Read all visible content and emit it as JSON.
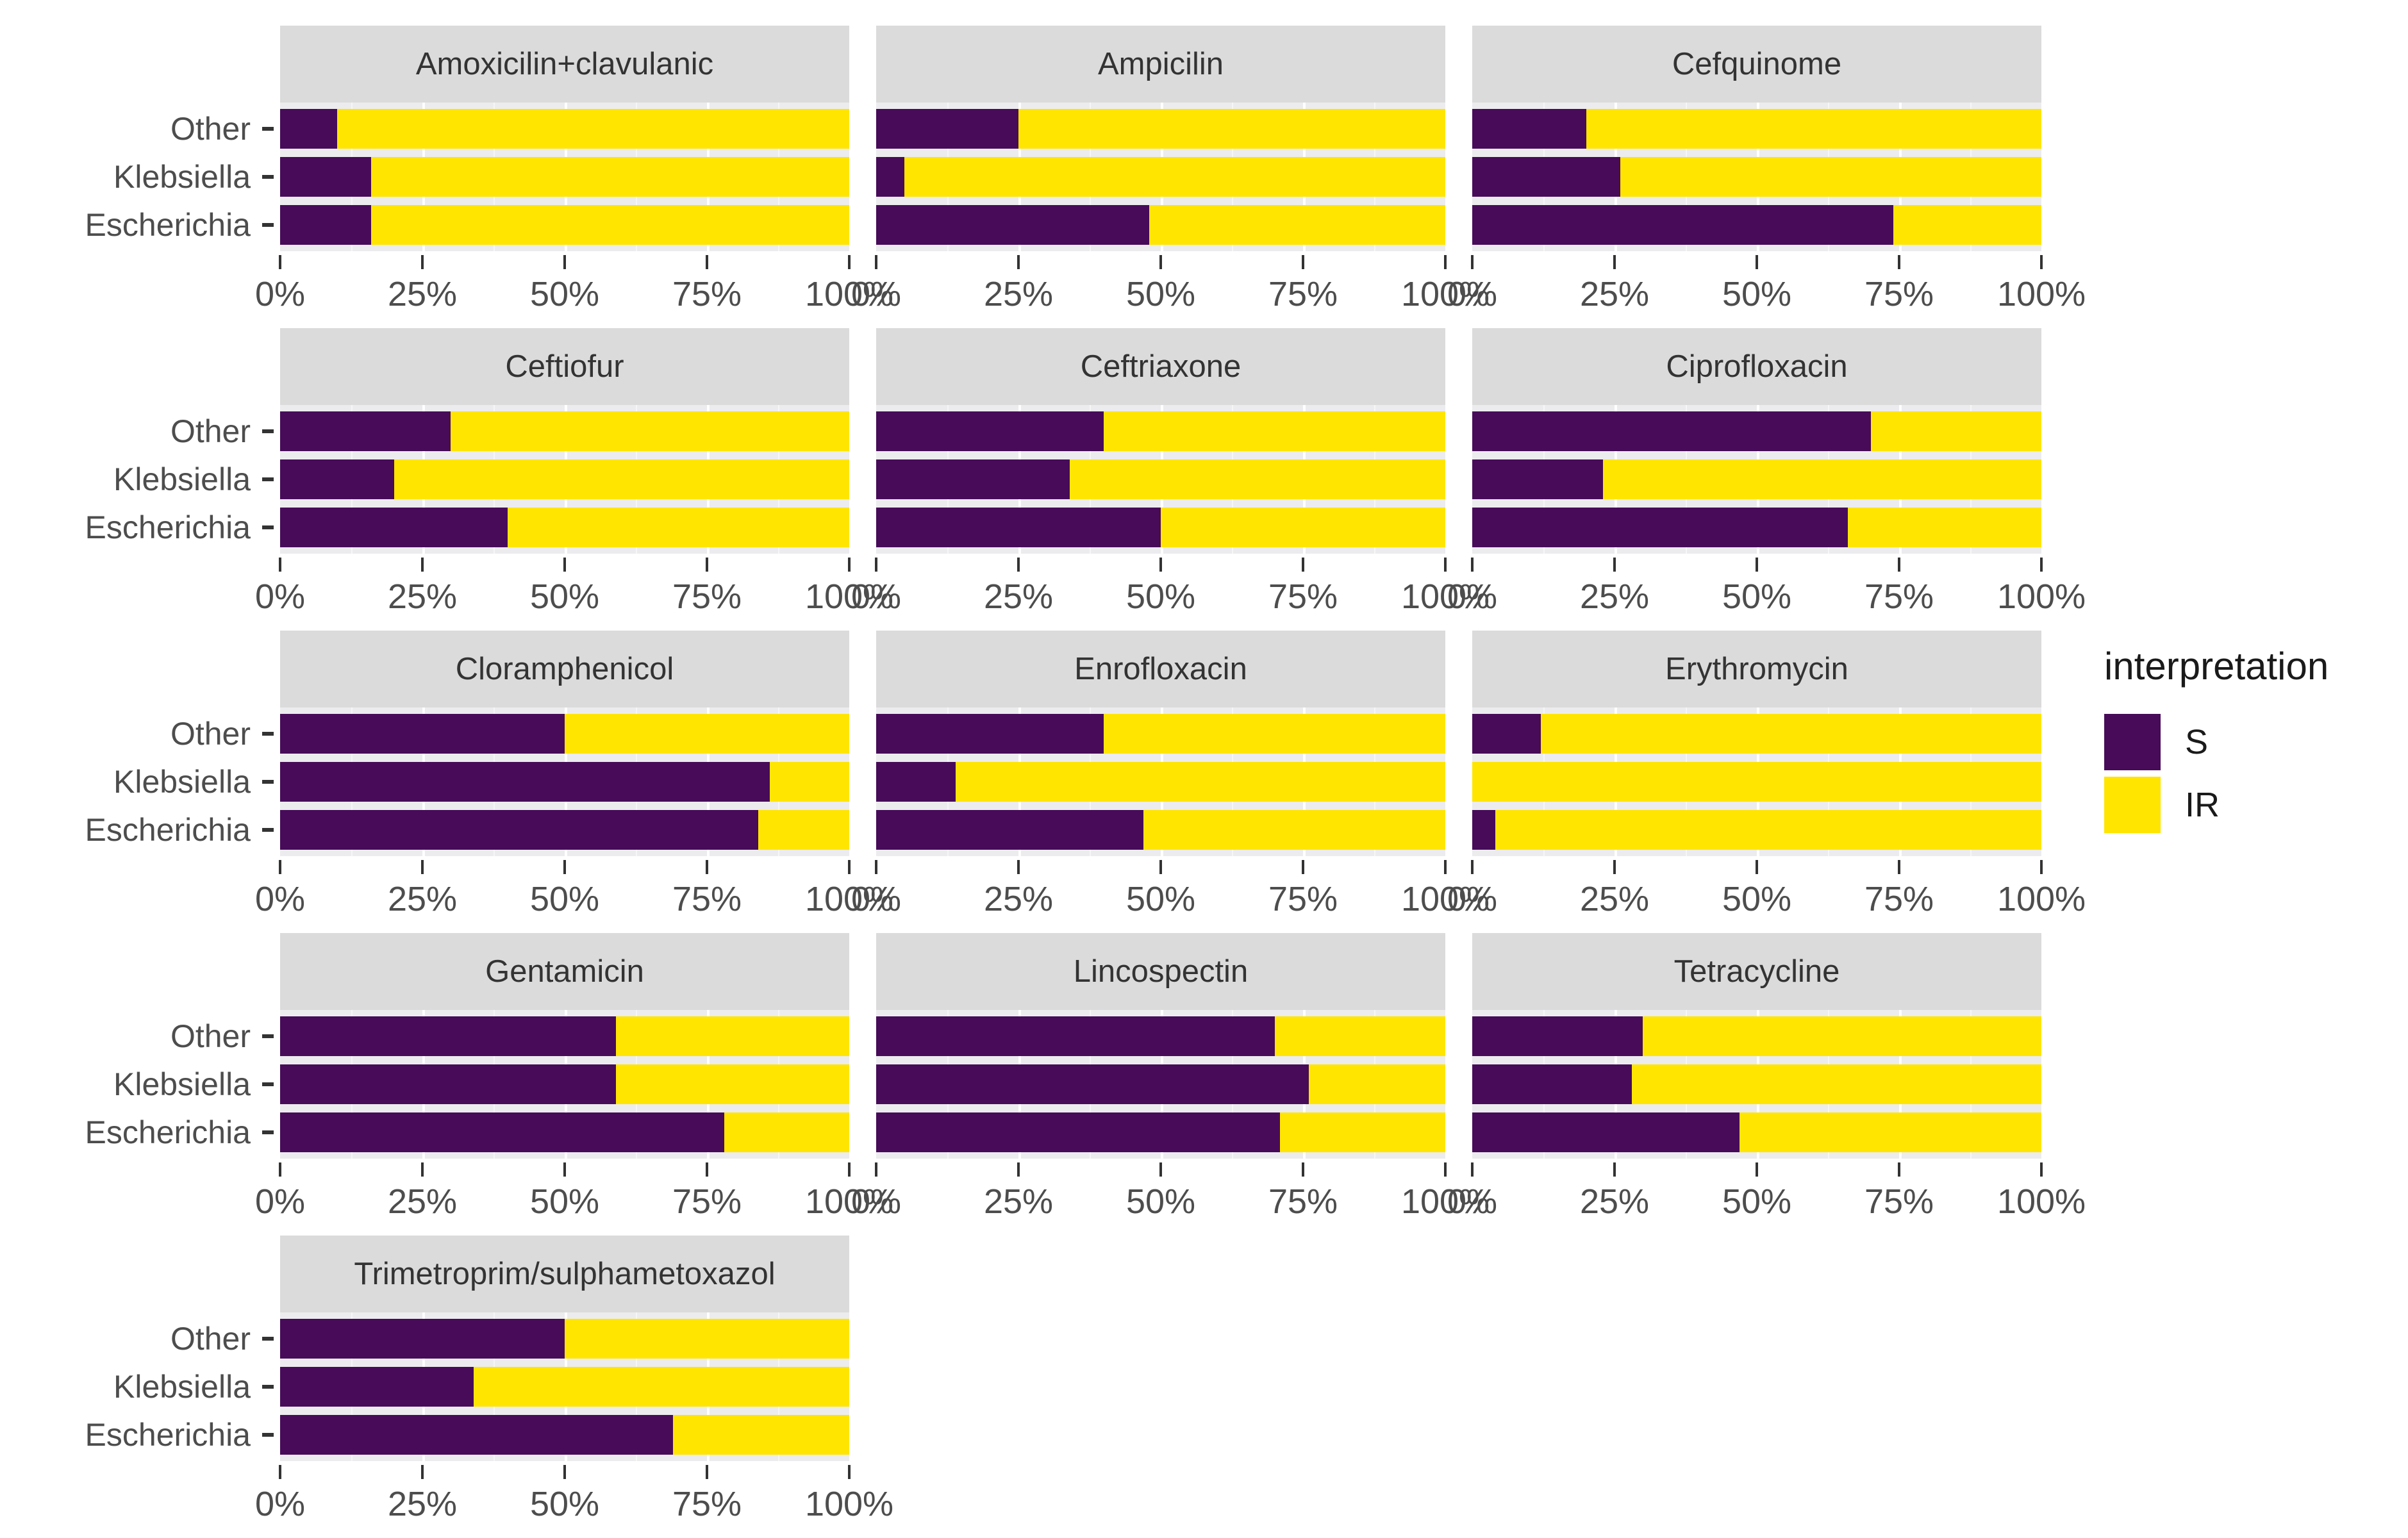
{
  "chart_data": {
    "type": "bar",
    "orientation": "horizontal",
    "stacked": true,
    "title": "",
    "categories": [
      "Other",
      "Klebsiella",
      "Escherichia"
    ],
    "x_ticks": [
      "0%",
      "25%",
      "50%",
      "75%",
      "100%"
    ],
    "x_tick_values": [
      0,
      25,
      50,
      75,
      100
    ],
    "xlim": [
      0,
      100
    ],
    "grid": true,
    "legend_position": "right",
    "facets": [
      {
        "title": "Amoxicilin+clavulanic",
        "series": {
          "S": [
            10,
            16,
            16
          ],
          "IR": [
            90,
            84,
            84
          ]
        }
      },
      {
        "title": "Ampicilin",
        "series": {
          "S": [
            25,
            5,
            48
          ],
          "IR": [
            75,
            95,
            52
          ]
        }
      },
      {
        "title": "Cefquinome",
        "series": {
          "S": [
            20,
            26,
            74
          ],
          "IR": [
            80,
            74,
            26
          ]
        }
      },
      {
        "title": "Ceftiofur",
        "series": {
          "S": [
            30,
            20,
            40
          ],
          "IR": [
            70,
            80,
            60
          ]
        }
      },
      {
        "title": "Ceftriaxone",
        "series": {
          "S": [
            40,
            34,
            50
          ],
          "IR": [
            60,
            66,
            50
          ]
        }
      },
      {
        "title": "Ciprofloxacin",
        "series": {
          "S": [
            70,
            23,
            66
          ],
          "IR": [
            30,
            77,
            34
          ]
        }
      },
      {
        "title": "Cloramphenicol",
        "series": {
          "S": [
            50,
            86,
            84
          ],
          "IR": [
            50,
            14,
            16
          ]
        }
      },
      {
        "title": "Enrofloxacin",
        "series": {
          "S": [
            40,
            14,
            47
          ],
          "IR": [
            60,
            86,
            53
          ]
        }
      },
      {
        "title": "Erythromycin",
        "series": {
          "S": [
            12,
            0,
            4
          ],
          "IR": [
            88,
            100,
            96
          ]
        }
      },
      {
        "title": "Gentamicin",
        "series": {
          "S": [
            59,
            59,
            78
          ],
          "IR": [
            41,
            41,
            22
          ]
        }
      },
      {
        "title": "Lincospectin",
        "series": {
          "S": [
            70,
            76,
            71
          ],
          "IR": [
            30,
            24,
            29
          ]
        }
      },
      {
        "title": "Tetracycline",
        "series": {
          "S": [
            30,
            28,
            47
          ],
          "IR": [
            70,
            72,
            53
          ]
        }
      },
      {
        "title": "Trimetroprim/sulphametoxazol",
        "series": {
          "S": [
            50,
            34,
            69
          ],
          "IR": [
            50,
            66,
            31
          ]
        }
      }
    ],
    "legend": {
      "title": "interpretation",
      "entries": [
        {
          "label": "S",
          "color": "#470b59"
        },
        {
          "label": "IR",
          "color": "#ffe500"
        }
      ]
    }
  },
  "colors": {
    "s_purple": "#470b59",
    "ir_yellow": "#ffe500",
    "strip_bg": "#dbdbdb",
    "panel_bg": "#ececee",
    "axis_text": "#4d4d4d"
  }
}
